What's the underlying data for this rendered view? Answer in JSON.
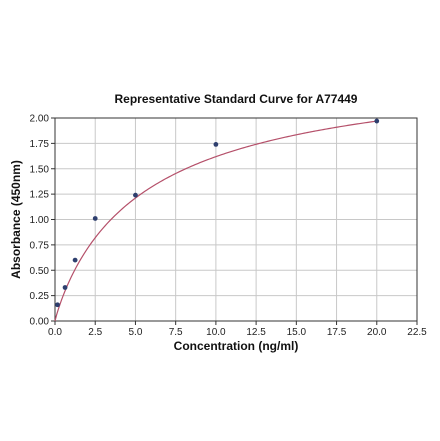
{
  "chart_data": {
    "type": "scatter",
    "title": "Representative Standard Curve for A77449",
    "xlabel": "Concentration (ng/ml)",
    "ylabel": "Absorbance (450nm)",
    "xlim": [
      0,
      22.5
    ],
    "ylim": [
      0,
      2.0
    ],
    "xticks": [
      "0.0",
      "2.5",
      "5.0",
      "7.5",
      "10.0",
      "12.5",
      "15.0",
      "17.5",
      "20.0",
      "22.5"
    ],
    "yticks": [
      "0.00",
      "0.25",
      "0.50",
      "0.75",
      "1.00",
      "1.25",
      "1.50",
      "1.75",
      "2.00"
    ],
    "grid": true,
    "series": [
      {
        "kind": "points",
        "color": "#2e3f6e",
        "x": [
          0.156,
          0.625,
          1.25,
          2.5,
          5.0,
          10.0,
          20.0
        ],
        "y": [
          0.16,
          0.33,
          0.6,
          1.01,
          1.24,
          1.74,
          1.97
        ]
      },
      {
        "kind": "fit-curve",
        "color": "#b5506a",
        "model": "4PL",
        "params": {
          "bottom": 0.0,
          "top": 2.6,
          "ec50": 5.8,
          "hill": 0.92
        },
        "x_range": [
          0.0,
          20.0
        ]
      }
    ]
  }
}
